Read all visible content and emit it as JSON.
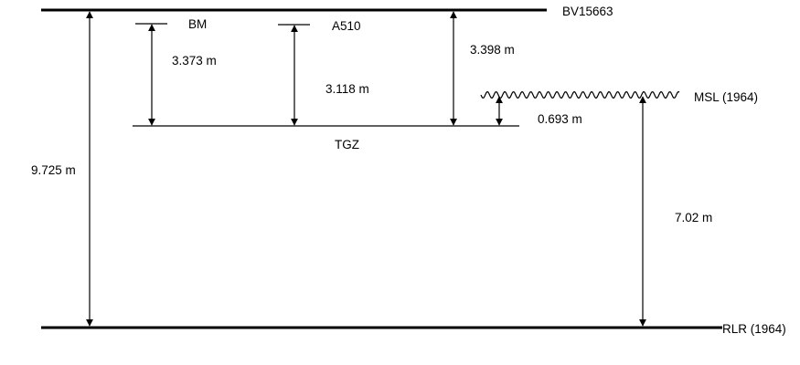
{
  "datums": {
    "top": "BV15663",
    "bottom": "RLR (1964)",
    "tide_gauge_zero": "TGZ",
    "mean_sea_level": "MSL (1964)",
    "bm": "BM",
    "a510": "A510"
  },
  "distances": {
    "total": "9.725 m",
    "bm_to_tgz": "3.373 m",
    "a510_to_tgz": "3.118 m",
    "bv_to_tgz": "3.398 m",
    "msl_above_tgz": "0.693 m",
    "msl_above_rlr": "7.02 m"
  }
}
